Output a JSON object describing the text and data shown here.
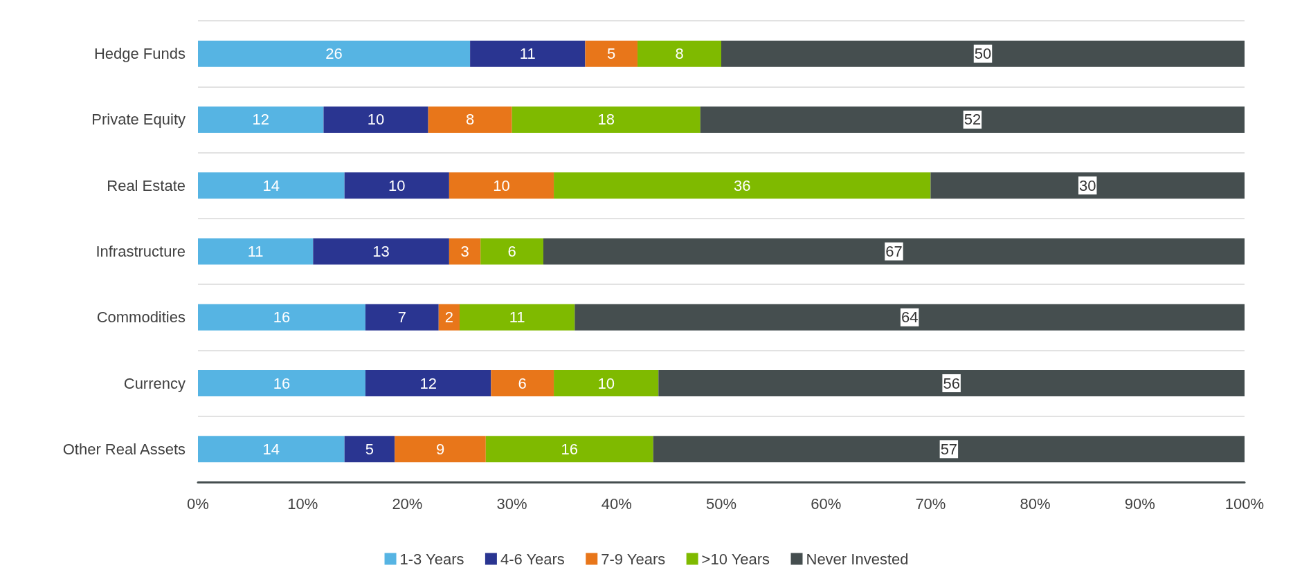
{
  "chart_data": {
    "type": "bar",
    "orientation": "horizontal",
    "stacked": true,
    "grid": "y",
    "legend": "bottom",
    "categories": [
      "Hedge Funds",
      "Private Equity",
      "Real Estate",
      "Infrastructure",
      "Commodities",
      "Currency",
      "Other Real Assets"
    ],
    "xlim": [
      0,
      100
    ],
    "xticks": [
      {
        "value": 0,
        "label": "0%"
      },
      {
        "value": 10,
        "label": "10%"
      },
      {
        "value": 20,
        "label": "20%"
      },
      {
        "value": 30,
        "label": "30%"
      },
      {
        "value": 40,
        "label": "40%"
      },
      {
        "value": 50,
        "label": "50%"
      },
      {
        "value": 60,
        "label": "60%"
      },
      {
        "value": 70,
        "label": "70%"
      },
      {
        "value": 80,
        "label": "80%"
      },
      {
        "value": 90,
        "label": "90%"
      },
      {
        "value": 100,
        "label": "100%"
      }
    ],
    "series": [
      {
        "name": "1-3 Years",
        "color": "#56b4e3",
        "values": [
          26,
          12,
          14,
          11,
          16,
          16,
          14
        ],
        "value_labels": [
          "26",
          "12",
          "14",
          "11",
          "16",
          "16",
          "14"
        ]
      },
      {
        "name": "4-6 Years",
        "color": "#2a3591",
        "values": [
          11,
          10,
          10,
          13,
          7,
          12,
          4.8
        ],
        "value_labels": [
          "11",
          "10",
          "10",
          "13",
          "7",
          "12",
          "5"
        ]
      },
      {
        "name": "7-9 Years",
        "color": "#e8761a",
        "values": [
          5,
          8,
          10,
          3,
          2,
          6,
          8.7
        ],
        "value_labels": [
          "5",
          "8",
          "10",
          "3",
          "2",
          "6",
          "9"
        ]
      },
      {
        "name": ">10 Years",
        "color": "#7fba00",
        "values": [
          8,
          18,
          36,
          6,
          11,
          10,
          16
        ],
        "value_labels": [
          "8",
          "18",
          "36",
          "6",
          "11",
          "10",
          "16"
        ]
      },
      {
        "name": "Never Invested",
        "color": "#454e4f",
        "values": [
          50,
          52,
          30,
          67,
          64,
          56,
          56.5
        ],
        "value_labels": [
          "50",
          "52",
          "30",
          "67",
          "64",
          "56",
          "57"
        ]
      }
    ]
  }
}
